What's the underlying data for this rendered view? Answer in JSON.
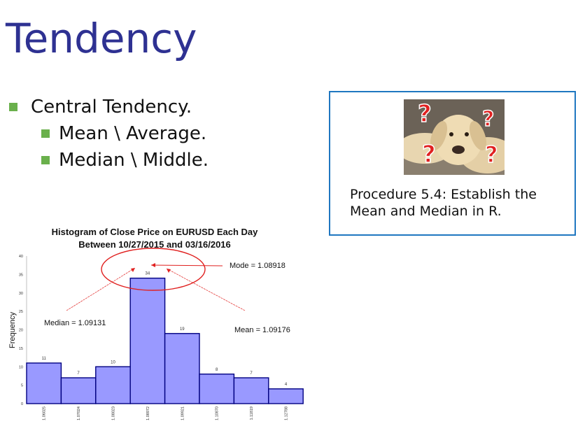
{
  "slide": {
    "title": "Tendency",
    "bullets": {
      "level1": "Central Tendency.",
      "level2": [
        "Mean \\ Average.",
        "Median \\ Middle."
      ]
    },
    "callout": {
      "image_icon": "dog-with-question-marks",
      "text": "Procedure 5.4: Establish the Mean and Median in R."
    }
  },
  "colors": {
    "title": "#2e3192",
    "bullet": "#6ab04c",
    "callout_border": "#1f77c0",
    "bar_fill": "#9999ff",
    "bar_stroke": "#000080",
    "ellipse": "#e0201f"
  },
  "chart_data": {
    "type": "bar",
    "title": "Histogram of Close Price on EURUSD Each Day",
    "subtitle": "Between 10/27/2015 and 03/16/2016",
    "ylabel": "Frequency",
    "xlabel": "",
    "categories": [
      "1.06025",
      "1.07024",
      "1.08023",
      "1.08972",
      "1.09921",
      "1.10870",
      "1.11819",
      "1.12788"
    ],
    "values": [
      11,
      7,
      10,
      34,
      19,
      8,
      7,
      4
    ],
    "value_labels": [
      "11",
      "7",
      "10",
      "34",
      "19",
      "8",
      "7",
      "4"
    ],
    "ylim": [
      0,
      40
    ],
    "yticks": [
      "0",
      "5",
      "10",
      "15",
      "20",
      "25",
      "30",
      "35",
      "40"
    ],
    "grid": false,
    "annotations": {
      "mode": "Mode = 1.08918",
      "median": "Median = 1.09131",
      "mean": "Mean = 1.09176"
    }
  }
}
